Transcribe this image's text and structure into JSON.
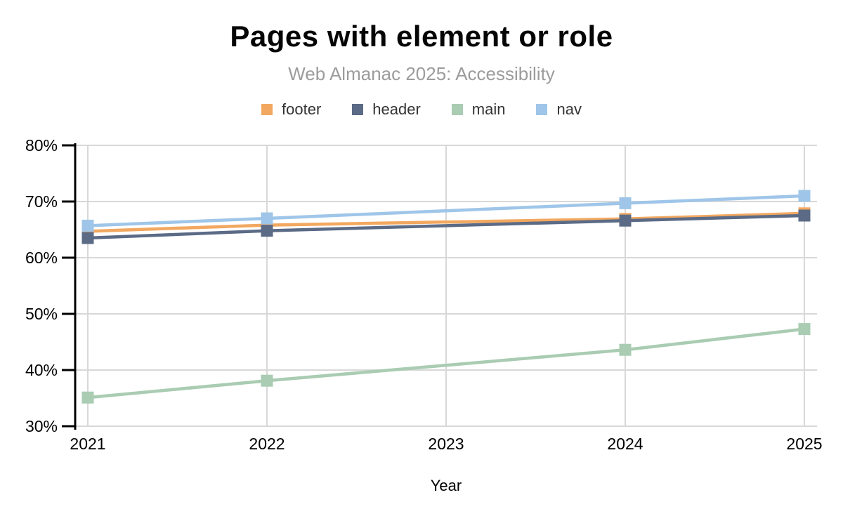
{
  "header": {
    "title": "Pages with element or role",
    "subtitle": "Web Almanac 2025: Accessibility"
  },
  "legend": {
    "items": [
      {
        "label": "footer",
        "color": "#F2A860"
      },
      {
        "label": "header",
        "color": "#5B6B86"
      },
      {
        "label": "main",
        "color": "#A9CCB2"
      },
      {
        "label": "nav",
        "color": "#9FC6E9"
      }
    ]
  },
  "chart_data": {
    "type": "line",
    "title": "Pages with element or role",
    "subtitle": "Web Almanac 2025: Accessibility",
    "xlabel": "Year",
    "ylabel": "",
    "x": [
      2021,
      2022,
      2024,
      2025
    ],
    "series": [
      {
        "name": "footer",
        "color": "#F2A860",
        "values": [
          64.7,
          65.8,
          66.9,
          67.9
        ]
      },
      {
        "name": "header",
        "color": "#5B6B86",
        "values": [
          63.5,
          64.8,
          66.6,
          67.5
        ]
      },
      {
        "name": "main",
        "color": "#A9CCB2",
        "values": [
          35.1,
          38.1,
          43.6,
          47.3
        ]
      },
      {
        "name": "nav",
        "color": "#9FC6E9",
        "values": [
          65.7,
          67.0,
          69.7,
          71.0
        ]
      }
    ],
    "xlim": [
      2021,
      2025
    ],
    "ylim": [
      30,
      80
    ],
    "x_ticks": [
      2021,
      2022,
      2023,
      2024,
      2025
    ],
    "x_tick_labels": [
      "2021",
      "2022",
      "2023",
      "2024",
      "2025"
    ],
    "y_ticks": [
      80,
      70,
      60,
      50,
      40,
      30
    ],
    "y_tick_labels": [
      "80%",
      "70%",
      "60%",
      "50%",
      "40%",
      "30%"
    ],
    "grid": true,
    "legend_position": "top",
    "marker": "square",
    "note": "no data point markers at 2023; lines connect 2022 to 2024 directly",
    "colors": {
      "grid": "#D8D8D8",
      "axis": "#000000",
      "tick_label": "#000000",
      "axis_label": "#000000"
    }
  }
}
